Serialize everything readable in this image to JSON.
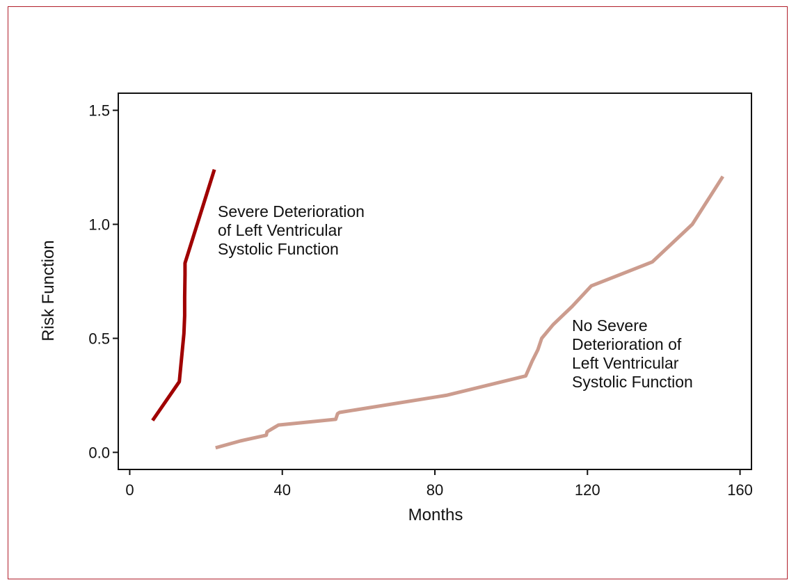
{
  "chart_data": {
    "type": "line",
    "title": "",
    "xlabel": "Months",
    "ylabel": "Risk Function",
    "xlim": [
      -3,
      163
    ],
    "ylim": [
      -0.075,
      1.575
    ],
    "xticks": [
      0,
      40,
      80,
      120,
      160
    ],
    "yticks": [
      0.0,
      0.5,
      1.0,
      1.5
    ],
    "xtick_labels": [
      "0",
      "40",
      "80",
      "120",
      "160"
    ],
    "ytick_labels": [
      "0.0",
      "0.5",
      "1.0",
      "1.5"
    ],
    "grid": false,
    "series": [
      {
        "name": "Severe Deterioration of Left Ventricular Systolic Function",
        "color": "#a00000",
        "x": [
          6,
          13,
          14.2,
          14.4,
          14.4,
          14.5,
          14.5,
          22.2
        ],
        "y": [
          0.14,
          0.31,
          0.52,
          0.6,
          0.68,
          0.78,
          0.83,
          1.24
        ]
      },
      {
        "name": "No Severe Deterioration of Left Ventricular Systolic Function",
        "color": "#cc9c8e",
        "x": [
          22.5,
          29,
          35.8,
          36,
          38,
          39,
          54,
          54.5,
          55,
          83,
          103.8,
          105.5,
          107,
          108,
          111,
          116,
          121,
          137,
          147.5,
          155.5
        ],
        "y": [
          0.02,
          0.05,
          0.075,
          0.09,
          0.11,
          0.12,
          0.145,
          0.17,
          0.175,
          0.25,
          0.335,
          0.4,
          0.45,
          0.5,
          0.56,
          0.64,
          0.73,
          0.835,
          1.0,
          1.21
        ]
      }
    ],
    "annotations": [
      {
        "lines": [
          "Severe Deterioration",
          "of Left Ventricular",
          "Systolic Function"
        ]
      },
      {
        "lines": [
          "No Severe",
          "Deterioration of",
          "Left Ventricular",
          "Systolic Function"
        ]
      }
    ]
  }
}
